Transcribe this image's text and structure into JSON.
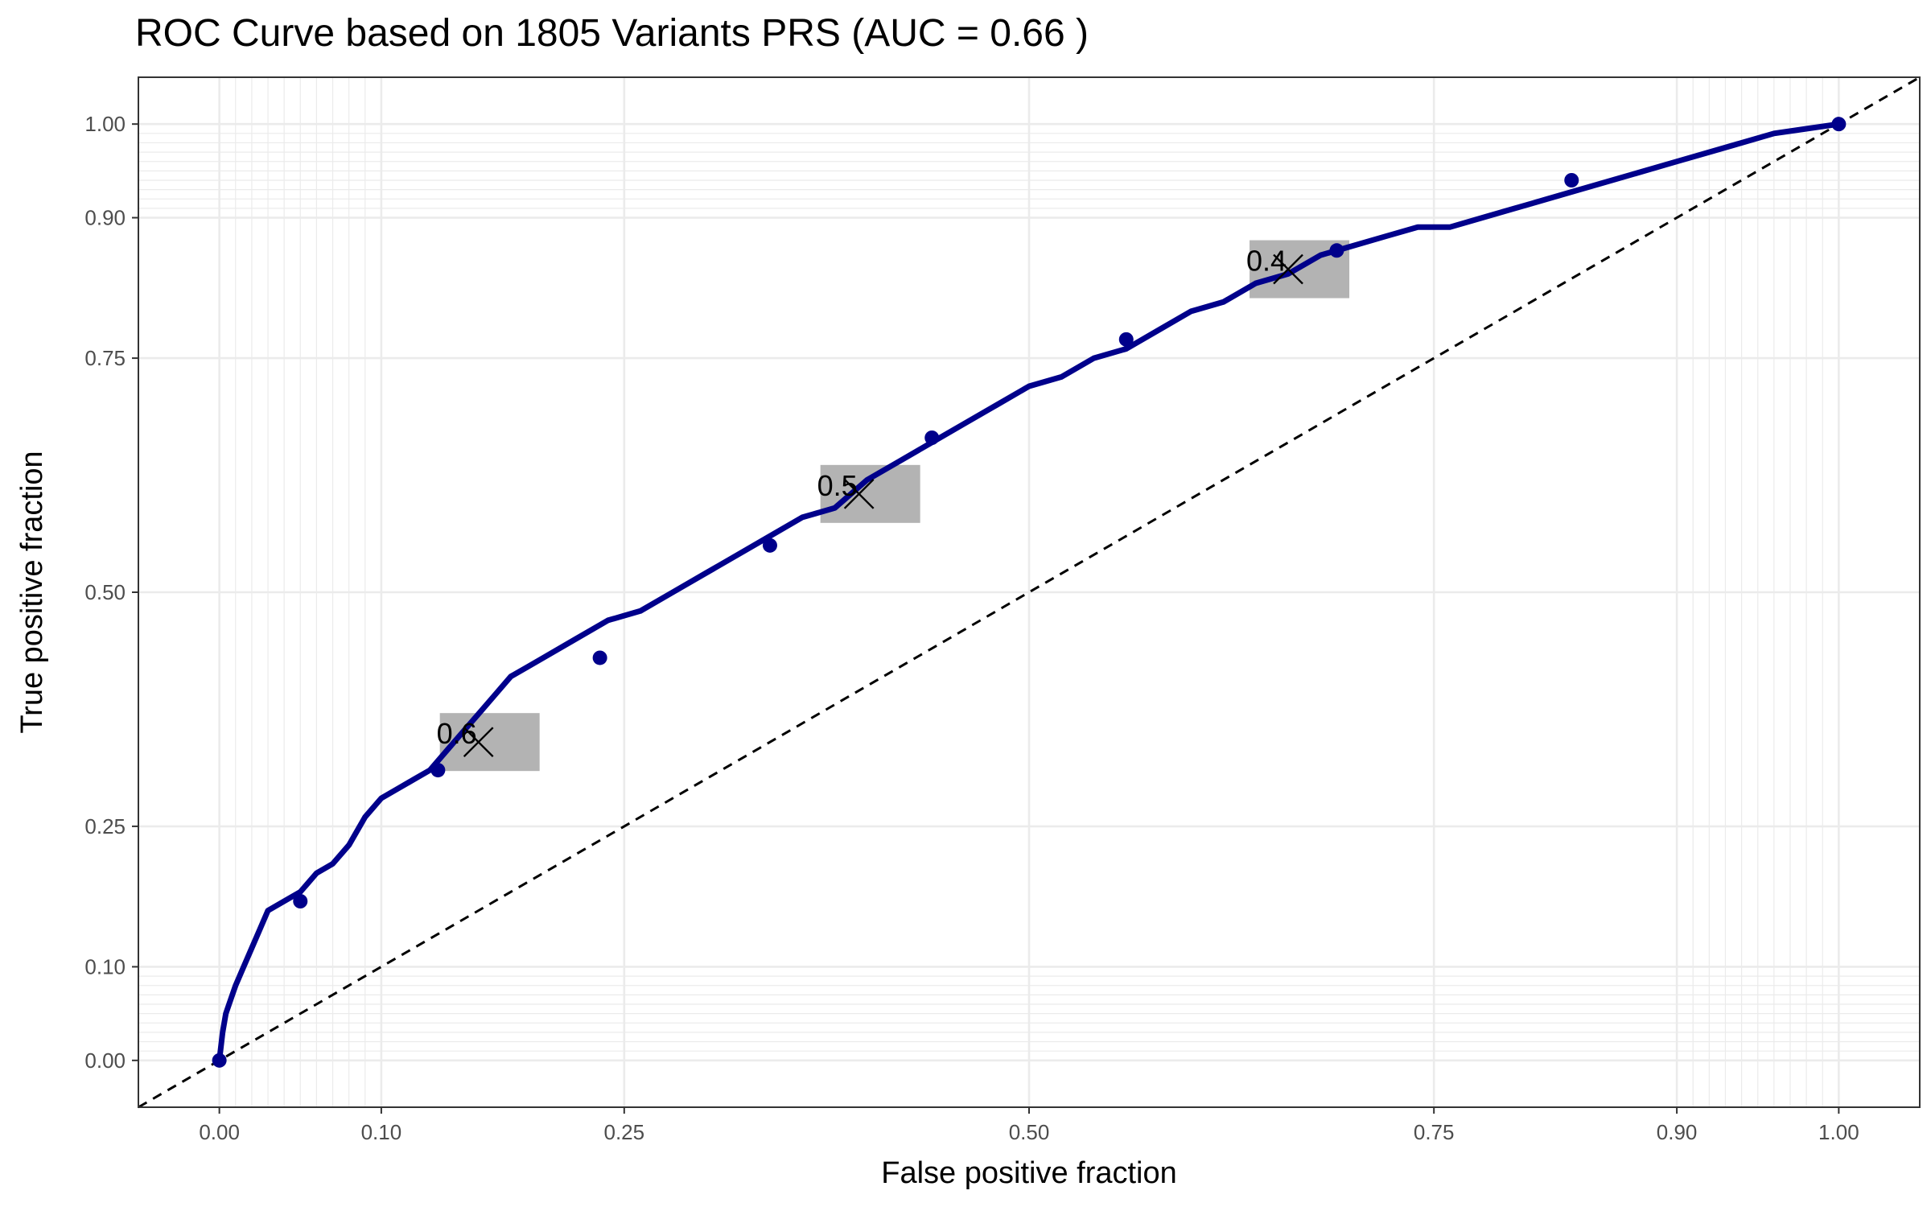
{
  "chart_data": {
    "type": "line",
    "title": "ROC Curve based on 1805 Variants PRS (AUC = 0.66 )",
    "xlabel": "False positive fraction",
    "ylabel": "True positive fraction",
    "xlim": [
      -0.05,
      1.05
    ],
    "ylim": [
      -0.05,
      1.05
    ],
    "grid": true,
    "legend": "none",
    "x_ticks": [
      {
        "value": 0.0,
        "label": "0.00"
      },
      {
        "value": 0.1,
        "label": "0.10"
      },
      {
        "value": 0.25,
        "label": "0.25"
      },
      {
        "value": 0.5,
        "label": "0.50"
      },
      {
        "value": 0.75,
        "label": "0.75"
      },
      {
        "value": 0.9,
        "label": "0.90"
      },
      {
        "value": 1.0,
        "label": "1.00"
      }
    ],
    "y_ticks": [
      {
        "value": 0.0,
        "label": "0.00"
      },
      {
        "value": 0.1,
        "label": "0.10"
      },
      {
        "value": 0.25,
        "label": "0.25"
      },
      {
        "value": 0.5,
        "label": "0.50"
      },
      {
        "value": 0.75,
        "label": "0.75"
      },
      {
        "value": 0.9,
        "label": "0.90"
      },
      {
        "value": 1.0,
        "label": "1.00"
      }
    ],
    "minor_grid_x": [
      0.01,
      0.02,
      0.03,
      0.04,
      0.05,
      0.06,
      0.07,
      0.08,
      0.09,
      0.91,
      0.92,
      0.93,
      0.94,
      0.95,
      0.96,
      0.97,
      0.98,
      0.99
    ],
    "minor_grid_y": [
      0.01,
      0.02,
      0.03,
      0.04,
      0.05,
      0.06,
      0.07,
      0.08,
      0.09,
      0.91,
      0.92,
      0.93,
      0.94,
      0.95,
      0.96,
      0.97,
      0.98,
      0.99
    ],
    "series": [
      {
        "color": "#00008B",
        "x": [
          0.0,
          0.002,
          0.004,
          0.006,
          0.01,
          0.015,
          0.02,
          0.025,
          0.03,
          0.04,
          0.05,
          0.06,
          0.07,
          0.08,
          0.09,
          0.1,
          0.11,
          0.12,
          0.13,
          0.14,
          0.15,
          0.16,
          0.17,
          0.18,
          0.19,
          0.2,
          0.22,
          0.24,
          0.26,
          0.28,
          0.3,
          0.32,
          0.34,
          0.36,
          0.38,
          0.4,
          0.42,
          0.44,
          0.46,
          0.48,
          0.5,
          0.52,
          0.54,
          0.56,
          0.58,
          0.6,
          0.62,
          0.64,
          0.66,
          0.68,
          0.7,
          0.72,
          0.74,
          0.76,
          0.78,
          0.8,
          0.82,
          0.84,
          0.86,
          0.88,
          0.9,
          0.92,
          0.94,
          0.96,
          0.98,
          1.0
        ],
        "y": [
          0.0,
          0.03,
          0.05,
          0.06,
          0.08,
          0.1,
          0.12,
          0.14,
          0.16,
          0.17,
          0.18,
          0.2,
          0.21,
          0.23,
          0.26,
          0.28,
          0.29,
          0.3,
          0.31,
          0.33,
          0.35,
          0.37,
          0.39,
          0.41,
          0.42,
          0.43,
          0.45,
          0.47,
          0.48,
          0.5,
          0.52,
          0.54,
          0.56,
          0.58,
          0.59,
          0.62,
          0.64,
          0.66,
          0.68,
          0.7,
          0.72,
          0.73,
          0.75,
          0.76,
          0.78,
          0.8,
          0.81,
          0.83,
          0.84,
          0.86,
          0.87,
          0.88,
          0.89,
          0.89,
          0.9,
          0.91,
          0.92,
          0.93,
          0.94,
          0.95,
          0.96,
          0.97,
          0.98,
          0.99,
          0.995,
          1.0
        ]
      }
    ],
    "points": [
      {
        "x": 0.0,
        "y": 0.0
      },
      {
        "x": 0.05,
        "y": 0.17
      },
      {
        "x": 0.135,
        "y": 0.31
      },
      {
        "x": 0.235,
        "y": 0.43
      },
      {
        "x": 0.34,
        "y": 0.55
      },
      {
        "x": 0.44,
        "y": 0.665
      },
      {
        "x": 0.56,
        "y": 0.77
      },
      {
        "x": 0.69,
        "y": 0.865
      },
      {
        "x": 0.835,
        "y": 0.94
      },
      {
        "x": 1.0,
        "y": 1.0
      }
    ],
    "reference_line": {
      "x": [
        -0.05,
        1.05
      ],
      "y": [
        -0.05,
        1.05
      ],
      "style": "dashed",
      "color": "#000000"
    },
    "thresholds": [
      {
        "label": "0.6",
        "x": 0.16,
        "y": 0.34
      },
      {
        "label": "0.5",
        "x": 0.395,
        "y": 0.605
      },
      {
        "label": "0.4",
        "x": 0.66,
        "y": 0.845
      }
    ]
  }
}
